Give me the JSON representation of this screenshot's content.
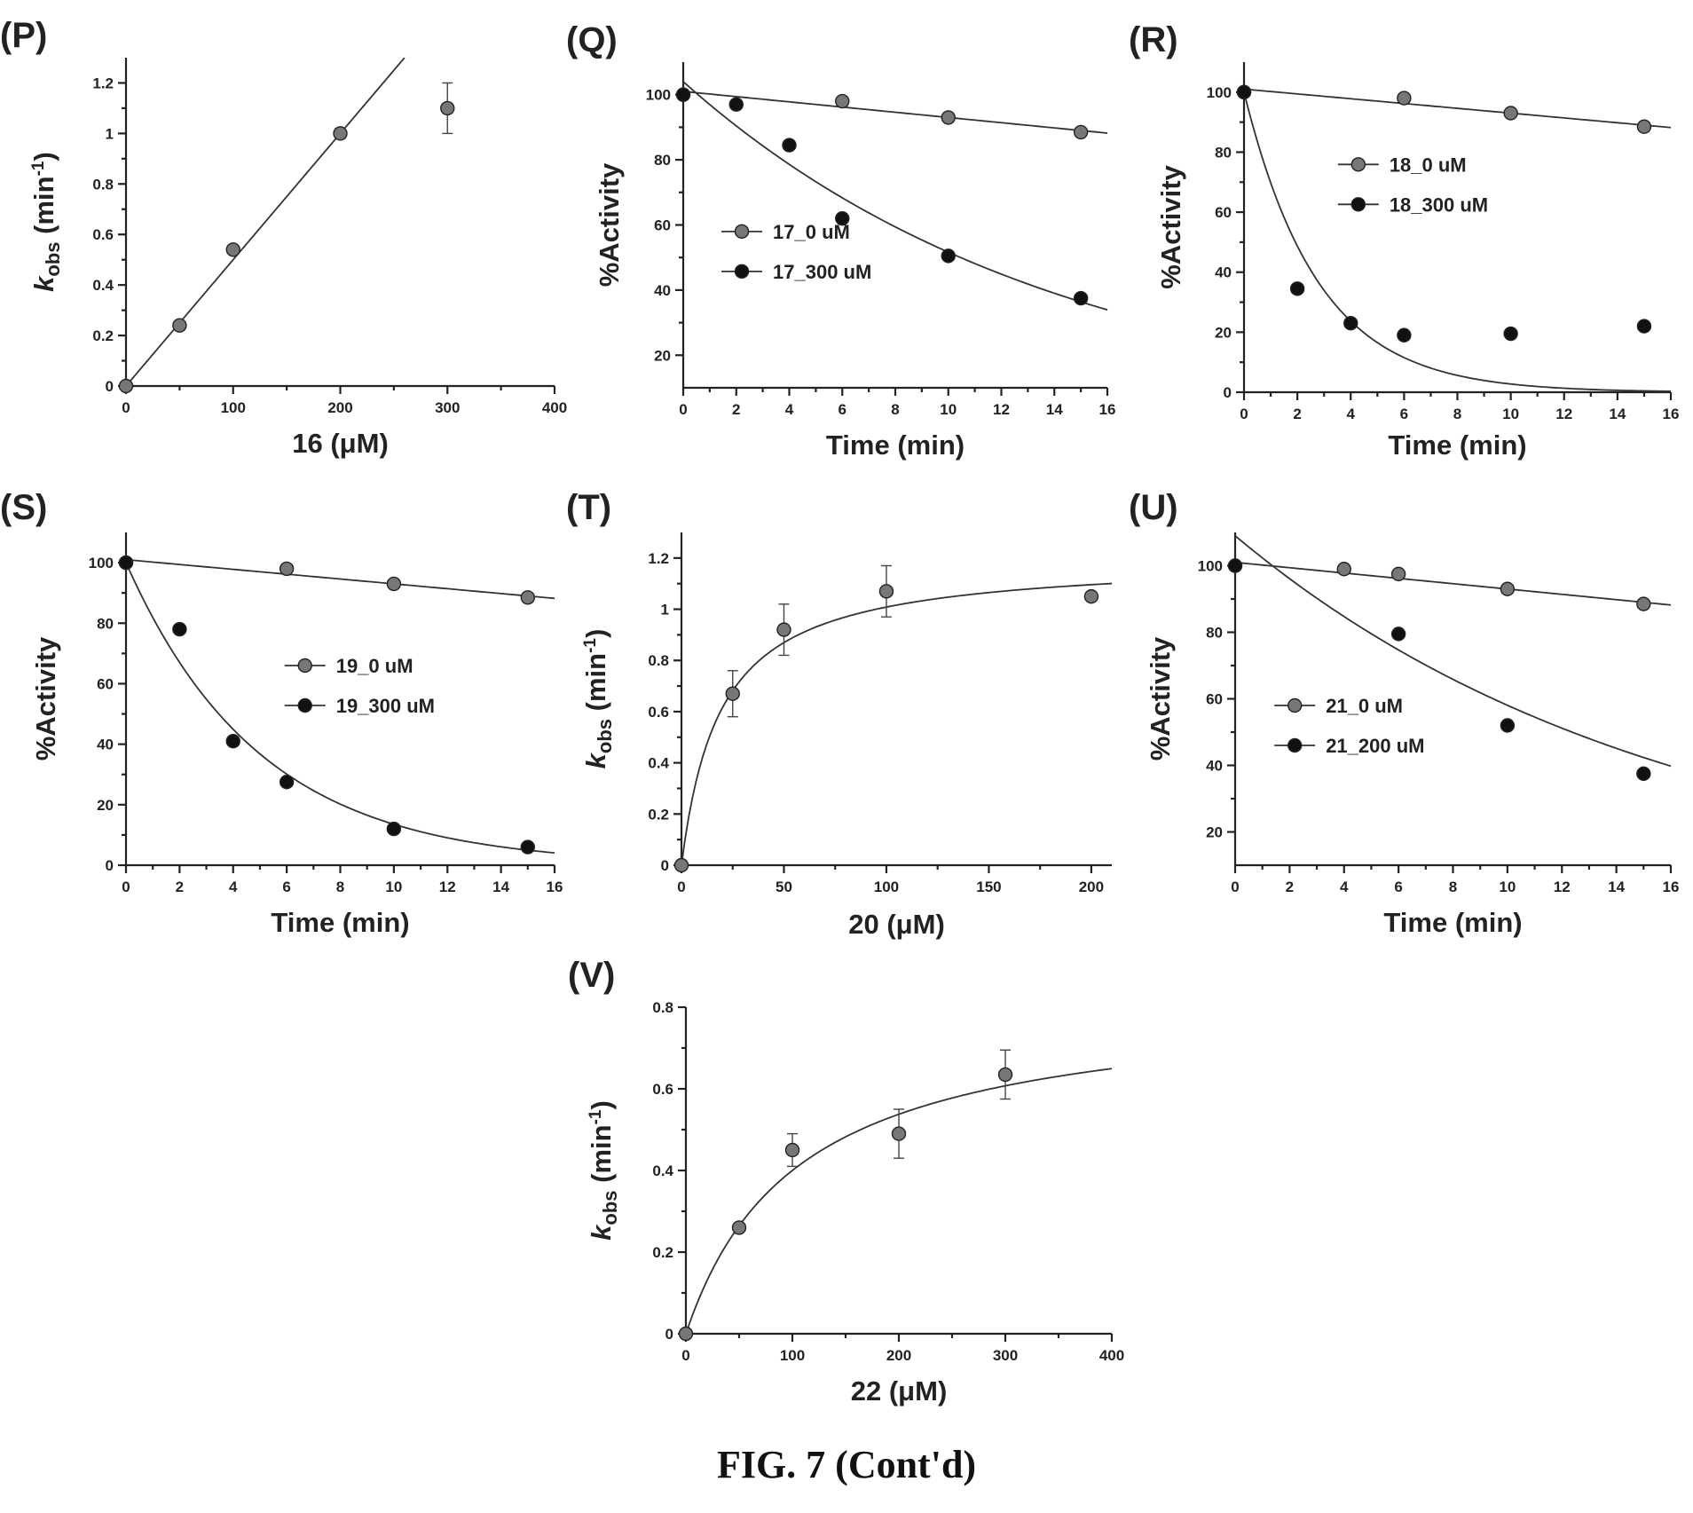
{
  "figure_caption": "FIG. 7 (Cont'd)",
  "chart_data": [
    {
      "id": "P",
      "panel_label": "(P)",
      "type": "scatter",
      "xlabel": "16 (μM)",
      "ylabel_main": "k",
      "ylabel_sub": "obs",
      "ylabel_unit": "(min",
      "ylabel_sup": "-1",
      "ylabel_close": ")",
      "xlim": [
        0,
        400
      ],
      "ylim": [
        0,
        1.3
      ],
      "xticks": [
        0,
        100,
        200,
        300,
        400
      ],
      "xtick_labels": [
        "0",
        "100",
        "200",
        "300",
        "400"
      ],
      "yticks": [
        0,
        0.2,
        0.4,
        0.6,
        0.8,
        1.0,
        1.2
      ],
      "ytick_labels": [
        "0",
        "0.2",
        "0.4",
        "0.6",
        "0.8",
        "1",
        "1.2"
      ],
      "series": [
        {
          "marker": "grey",
          "points": [
            [
              0,
              0
            ],
            [
              50,
              0.24
            ],
            [
              100,
              0.54
            ],
            [
              200,
              1.0
            ],
            [
              300,
              1.1
            ]
          ],
          "errors": [
            0,
            0,
            0,
            0.02,
            0.1
          ]
        }
      ],
      "fits": [
        {
          "kind": "linear",
          "slope": 0.005,
          "intercept": 0,
          "x_range": [
            0,
            260
          ]
        }
      ]
    },
    {
      "id": "Q",
      "panel_label": "(Q)",
      "type": "scatter",
      "xlabel": "Time (min)",
      "ylabel": "%Activity",
      "xlim": [
        0,
        16
      ],
      "ylim": [
        10,
        110
      ],
      "xticks": [
        0,
        2,
        4,
        6,
        8,
        10,
        12,
        14,
        16
      ],
      "xtick_labels": [
        "0",
        "2",
        "4",
        "6",
        "8",
        "10",
        "12",
        "14",
        "16"
      ],
      "yticks": [
        20,
        40,
        60,
        80,
        100
      ],
      "ytick_labels": [
        "20",
        "40",
        "60",
        "80",
        "100"
      ],
      "legend_position": "center-left",
      "series": [
        {
          "name": "17_0 uM",
          "marker": "grey",
          "points": [
            [
              0,
              100
            ],
            [
              6,
              98
            ],
            [
              10,
              93
            ],
            [
              15,
              88.5
            ]
          ]
        },
        {
          "name": "17_300 uM",
          "marker": "black",
          "points": [
            [
              0,
              100
            ],
            [
              2,
              97
            ],
            [
              4,
              84.5
            ],
            [
              6,
              62
            ],
            [
              10,
              50.5
            ],
            [
              15,
              37.5
            ]
          ]
        }
      ],
      "fits": [
        {
          "kind": "linear",
          "slope": -0.8,
          "intercept": 101,
          "x_range": [
            0,
            16
          ]
        },
        {
          "kind": "exp_decay",
          "a": 104,
          "k": 0.07,
          "c": 0,
          "x_range": [
            0,
            16
          ]
        }
      ]
    },
    {
      "id": "R",
      "panel_label": "(R)",
      "type": "scatter",
      "xlabel": "Time (min)",
      "ylabel": "%Activity",
      "xlim": [
        0,
        16
      ],
      "ylim": [
        0,
        110
      ],
      "xticks": [
        0,
        2,
        4,
        6,
        8,
        10,
        12,
        14,
        16
      ],
      "xtick_labels": [
        "0",
        "2",
        "4",
        "6",
        "8",
        "10",
        "12",
        "14",
        "16"
      ],
      "yticks": [
        0,
        20,
        40,
        60,
        80,
        100
      ],
      "ytick_labels": [
        "0",
        "20",
        "40",
        "60",
        "80",
        "100"
      ],
      "legend_position": "upper-middle",
      "series": [
        {
          "name": "18_0 uM",
          "marker": "grey",
          "points": [
            [
              0,
              100
            ],
            [
              6,
              98
            ],
            [
              10,
              93
            ],
            [
              15,
              88.5
            ]
          ]
        },
        {
          "name": "18_300 uM",
          "marker": "black",
          "points": [
            [
              0,
              100
            ],
            [
              2,
              34.5
            ],
            [
              4,
              23
            ],
            [
              6,
              19
            ],
            [
              10,
              19.5
            ],
            [
              15,
              22
            ]
          ]
        }
      ],
      "fits": [
        {
          "kind": "linear",
          "slope": -0.8,
          "intercept": 101,
          "x_range": [
            0,
            16
          ]
        },
        {
          "kind": "exp_decay",
          "a": 100,
          "k": 0.36,
          "c": 0,
          "x_range": [
            0,
            16
          ]
        }
      ]
    },
    {
      "id": "S",
      "panel_label": "(S)",
      "type": "scatter",
      "xlabel": "Time (min)",
      "ylabel": "%Activity",
      "xlim": [
        0,
        16
      ],
      "ylim": [
        0,
        110
      ],
      "xticks": [
        0,
        2,
        4,
        6,
        8,
        10,
        12,
        14,
        16
      ],
      "xtick_labels": [
        "0",
        "2",
        "4",
        "6",
        "8",
        "10",
        "12",
        "14",
        "16"
      ],
      "yticks": [
        0,
        20,
        40,
        60,
        80,
        100
      ],
      "ytick_labels": [
        "0",
        "20",
        "40",
        "60",
        "80",
        "100"
      ],
      "legend_position": "center-right",
      "series": [
        {
          "name": "19_0 uM",
          "marker": "grey",
          "points": [
            [
              0,
              100
            ],
            [
              6,
              98
            ],
            [
              10,
              93
            ],
            [
              15,
              88.5
            ]
          ]
        },
        {
          "name": "19_300 uM",
          "marker": "black",
          "points": [
            [
              0,
              100
            ],
            [
              2,
              78
            ],
            [
              4,
              41
            ],
            [
              6,
              27.5
            ],
            [
              10,
              12
            ],
            [
              15,
              6
            ]
          ]
        }
      ],
      "fits": [
        {
          "kind": "linear",
          "slope": -0.8,
          "intercept": 101,
          "x_range": [
            0,
            16
          ]
        },
        {
          "kind": "exp_decay",
          "a": 100,
          "k": 0.2,
          "c": 0,
          "x_range": [
            0,
            16
          ]
        }
      ]
    },
    {
      "id": "T",
      "panel_label": "(T)",
      "type": "scatter",
      "xlabel": "20 (μM)",
      "ylabel_main": "k",
      "ylabel_sub": "obs",
      "ylabel_unit": "(min",
      "ylabel_sup": "-1",
      "ylabel_close": ")",
      "xlim": [
        0,
        210
      ],
      "ylim": [
        0,
        1.3
      ],
      "xticks": [
        0,
        50,
        100,
        150,
        200
      ],
      "xtick_labels": [
        "0",
        "50",
        "100",
        "150",
        "200"
      ],
      "yticks": [
        0,
        0.2,
        0.4,
        0.6,
        0.8,
        1.0,
        1.2
      ],
      "ytick_labels": [
        "0",
        "0.2",
        "0.4",
        "0.6",
        "0.8",
        "1",
        "1.2"
      ],
      "series": [
        {
          "marker": "grey",
          "points": [
            [
              0,
              0
            ],
            [
              25,
              0.67
            ],
            [
              50,
              0.92
            ],
            [
              100,
              1.07
            ],
            [
              200,
              1.05
            ]
          ],
          "errors": [
            0,
            0.09,
            0.1,
            0.1,
            0
          ]
        }
      ],
      "fits": [
        {
          "kind": "hyperbolic",
          "vmax": 1.2,
          "km": 19,
          "x_range": [
            0,
            210
          ]
        }
      ]
    },
    {
      "id": "U",
      "panel_label": "(U)",
      "type": "scatter",
      "xlabel": "Time (min)",
      "ylabel": "%Activity",
      "xlim": [
        0,
        16
      ],
      "ylim": [
        10,
        110
      ],
      "xticks": [
        0,
        2,
        4,
        6,
        8,
        10,
        12,
        14,
        16
      ],
      "xtick_labels": [
        "0",
        "2",
        "4",
        "6",
        "8",
        "10",
        "12",
        "14",
        "16"
      ],
      "yticks": [
        20,
        40,
        60,
        80,
        100
      ],
      "ytick_labels": [
        "20",
        "40",
        "60",
        "80",
        "100"
      ],
      "legend_position": "center-left",
      "series": [
        {
          "name": "21_0 uM",
          "marker": "grey",
          "points": [
            [
              0,
              100
            ],
            [
              4,
              99
            ],
            [
              6,
              97.5
            ],
            [
              10,
              93
            ],
            [
              15,
              88.5
            ]
          ]
        },
        {
          "name": "21_200 uM",
          "marker": "black",
          "points": [
            [
              0,
              100
            ],
            [
              6,
              79.5
            ],
            [
              10,
              52
            ],
            [
              15,
              37.5
            ]
          ]
        }
      ],
      "fits": [
        {
          "kind": "linear",
          "slope": -0.8,
          "intercept": 101,
          "x_range": [
            0,
            16
          ]
        },
        {
          "kind": "exp_decay",
          "a": 109,
          "k": 0.063,
          "c": 0,
          "x_range": [
            0,
            16
          ]
        }
      ]
    },
    {
      "id": "V",
      "panel_label": "(V)",
      "type": "scatter",
      "xlabel": "22 (μM)",
      "ylabel_main": "k",
      "ylabel_sub": "obs",
      "ylabel_unit": "(min",
      "ylabel_sup": "-1",
      "ylabel_close": ")",
      "xlim": [
        0,
        400
      ],
      "ylim": [
        0,
        0.8
      ],
      "xticks": [
        0,
        100,
        200,
        300,
        400
      ],
      "xtick_labels": [
        "0",
        "100",
        "200",
        "300",
        "400"
      ],
      "yticks": [
        0,
        0.2,
        0.4,
        0.6,
        0.8
      ],
      "ytick_labels": [
        "0",
        "0.2",
        "0.4",
        "0.6",
        "0.8"
      ],
      "series": [
        {
          "marker": "grey",
          "points": [
            [
              0,
              0
            ],
            [
              50,
              0.26
            ],
            [
              100,
              0.45
            ],
            [
              200,
              0.49
            ],
            [
              300,
              0.635
            ]
          ],
          "errors": [
            0,
            0,
            0.04,
            0.06,
            0.06
          ]
        }
      ],
      "fits": [
        {
          "kind": "hyperbolic",
          "vmax": 0.82,
          "km": 105,
          "x_range": [
            0,
            400
          ]
        }
      ]
    }
  ]
}
